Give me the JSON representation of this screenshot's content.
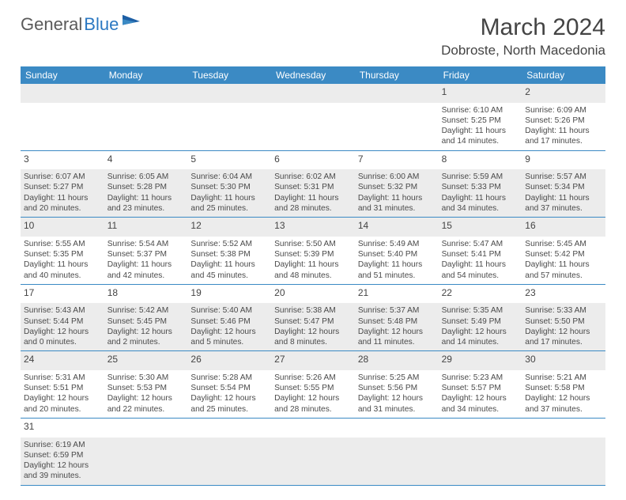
{
  "logo": {
    "text1": "General",
    "text2": "Blue"
  },
  "header": {
    "title": "March 2024",
    "location": "Dobroste, North Macedonia"
  },
  "colors": {
    "header_bg": "#3b8ac4",
    "header_fg": "#ffffff",
    "row_even_bg": "#ececec",
    "row_odd_bg": "#ffffff",
    "divider": "#3b8ac4",
    "text": "#4a4a4a"
  },
  "day_labels": [
    "Sunday",
    "Monday",
    "Tuesday",
    "Wednesday",
    "Thursday",
    "Friday",
    "Saturday"
  ],
  "weeks": [
    [
      null,
      null,
      null,
      null,
      null,
      {
        "n": "1",
        "sr": "6:10 AM",
        "ss": "5:25 PM",
        "dl": "11 hours and 14 minutes."
      },
      {
        "n": "2",
        "sr": "6:09 AM",
        "ss": "5:26 PM",
        "dl": "11 hours and 17 minutes."
      }
    ],
    [
      {
        "n": "3",
        "sr": "6:07 AM",
        "ss": "5:27 PM",
        "dl": "11 hours and 20 minutes."
      },
      {
        "n": "4",
        "sr": "6:05 AM",
        "ss": "5:28 PM",
        "dl": "11 hours and 23 minutes."
      },
      {
        "n": "5",
        "sr": "6:04 AM",
        "ss": "5:30 PM",
        "dl": "11 hours and 25 minutes."
      },
      {
        "n": "6",
        "sr": "6:02 AM",
        "ss": "5:31 PM",
        "dl": "11 hours and 28 minutes."
      },
      {
        "n": "7",
        "sr": "6:00 AM",
        "ss": "5:32 PM",
        "dl": "11 hours and 31 minutes."
      },
      {
        "n": "8",
        "sr": "5:59 AM",
        "ss": "5:33 PM",
        "dl": "11 hours and 34 minutes."
      },
      {
        "n": "9",
        "sr": "5:57 AM",
        "ss": "5:34 PM",
        "dl": "11 hours and 37 minutes."
      }
    ],
    [
      {
        "n": "10",
        "sr": "5:55 AM",
        "ss": "5:35 PM",
        "dl": "11 hours and 40 minutes."
      },
      {
        "n": "11",
        "sr": "5:54 AM",
        "ss": "5:37 PM",
        "dl": "11 hours and 42 minutes."
      },
      {
        "n": "12",
        "sr": "5:52 AM",
        "ss": "5:38 PM",
        "dl": "11 hours and 45 minutes."
      },
      {
        "n": "13",
        "sr": "5:50 AM",
        "ss": "5:39 PM",
        "dl": "11 hours and 48 minutes."
      },
      {
        "n": "14",
        "sr": "5:49 AM",
        "ss": "5:40 PM",
        "dl": "11 hours and 51 minutes."
      },
      {
        "n": "15",
        "sr": "5:47 AM",
        "ss": "5:41 PM",
        "dl": "11 hours and 54 minutes."
      },
      {
        "n": "16",
        "sr": "5:45 AM",
        "ss": "5:42 PM",
        "dl": "11 hours and 57 minutes."
      }
    ],
    [
      {
        "n": "17",
        "sr": "5:43 AM",
        "ss": "5:44 PM",
        "dl": "12 hours and 0 minutes."
      },
      {
        "n": "18",
        "sr": "5:42 AM",
        "ss": "5:45 PM",
        "dl": "12 hours and 2 minutes."
      },
      {
        "n": "19",
        "sr": "5:40 AM",
        "ss": "5:46 PM",
        "dl": "12 hours and 5 minutes."
      },
      {
        "n": "20",
        "sr": "5:38 AM",
        "ss": "5:47 PM",
        "dl": "12 hours and 8 minutes."
      },
      {
        "n": "21",
        "sr": "5:37 AM",
        "ss": "5:48 PM",
        "dl": "12 hours and 11 minutes."
      },
      {
        "n": "22",
        "sr": "5:35 AM",
        "ss": "5:49 PM",
        "dl": "12 hours and 14 minutes."
      },
      {
        "n": "23",
        "sr": "5:33 AM",
        "ss": "5:50 PM",
        "dl": "12 hours and 17 minutes."
      }
    ],
    [
      {
        "n": "24",
        "sr": "5:31 AM",
        "ss": "5:51 PM",
        "dl": "12 hours and 20 minutes."
      },
      {
        "n": "25",
        "sr": "5:30 AM",
        "ss": "5:53 PM",
        "dl": "12 hours and 22 minutes."
      },
      {
        "n": "26",
        "sr": "5:28 AM",
        "ss": "5:54 PM",
        "dl": "12 hours and 25 minutes."
      },
      {
        "n": "27",
        "sr": "5:26 AM",
        "ss": "5:55 PM",
        "dl": "12 hours and 28 minutes."
      },
      {
        "n": "28",
        "sr": "5:25 AM",
        "ss": "5:56 PM",
        "dl": "12 hours and 31 minutes."
      },
      {
        "n": "29",
        "sr": "5:23 AM",
        "ss": "5:57 PM",
        "dl": "12 hours and 34 minutes."
      },
      {
        "n": "30",
        "sr": "5:21 AM",
        "ss": "5:58 PM",
        "dl": "12 hours and 37 minutes."
      }
    ],
    [
      {
        "n": "31",
        "sr": "6:19 AM",
        "ss": "6:59 PM",
        "dl": "12 hours and 39 minutes."
      },
      null,
      null,
      null,
      null,
      null,
      null
    ]
  ],
  "labels": {
    "sunrise": "Sunrise:",
    "sunset": "Sunset:",
    "daylight": "Daylight:"
  }
}
